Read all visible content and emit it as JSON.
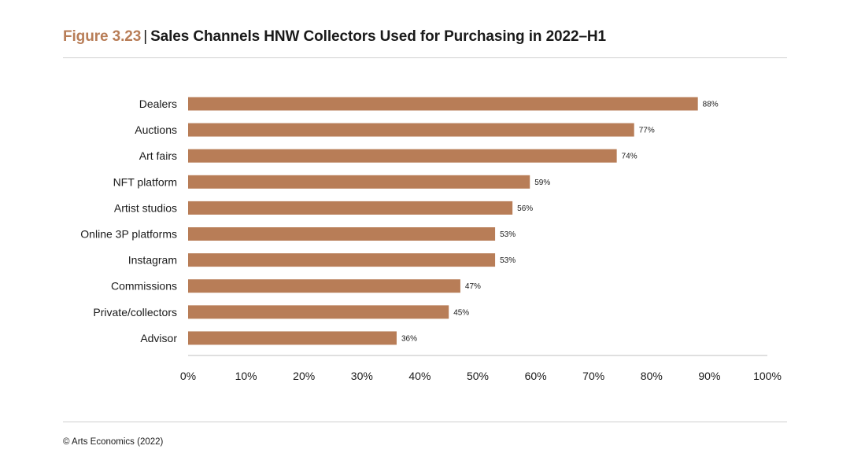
{
  "figure": {
    "label": "Figure 3.23",
    "separator": "|",
    "title": "Sales Channels HNW Collectors Used for Purchasing in 2022–H1"
  },
  "source": "© Arts Economics (2022)",
  "colors": {
    "bar": "#b87d57",
    "label": "#b87d57",
    "rule": "#cfcfcf",
    "axis": "#bfbfbf"
  },
  "chart_data": {
    "type": "bar",
    "orientation": "horizontal",
    "title": "Sales Channels HNW Collectors Used for Purchasing in 2022–H1",
    "xlabel": "",
    "ylabel": "",
    "categories": [
      "Dealers",
      "Auctions",
      "Art fairs",
      "NFT platform",
      "Artist studios",
      "Online 3P platforms",
      "Instagram",
      "Commissions",
      "Private/collectors",
      "Advisor"
    ],
    "values": [
      88,
      77,
      74,
      59,
      56,
      53,
      53,
      47,
      45,
      36
    ],
    "value_labels": [
      "88%",
      "77%",
      "74%",
      "59%",
      "56%",
      "53%",
      "53%",
      "47%",
      "45%",
      "36%"
    ],
    "xlim": [
      0,
      100
    ],
    "xticks": [
      0,
      10,
      20,
      30,
      40,
      50,
      60,
      70,
      80,
      90,
      100
    ],
    "xtick_labels": [
      "0%",
      "10%",
      "20%",
      "30%",
      "40%",
      "50%",
      "60%",
      "70%",
      "80%",
      "90%",
      "100%"
    ],
    "grid": false,
    "legend": "none"
  }
}
